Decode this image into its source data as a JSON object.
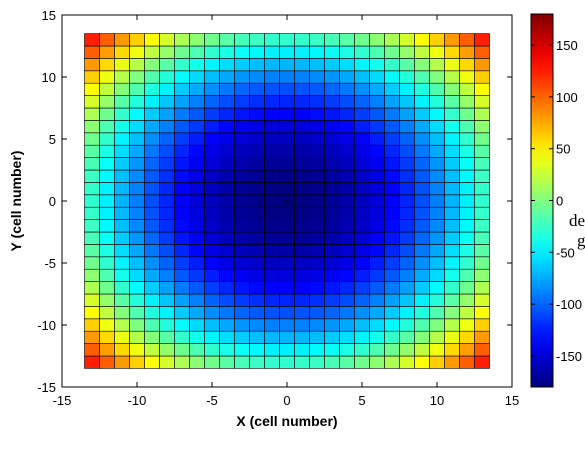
{
  "chart_data": {
    "type": "heatmap",
    "title": "",
    "xlabel": "X (cell number)",
    "ylabel": "Y (cell number)",
    "xlim": [
      -15,
      15
    ],
    "ylim": [
      -15,
      15
    ],
    "xticks": [
      -15,
      -10,
      -5,
      0,
      5,
      10,
      15
    ],
    "yticks": [
      -15,
      -10,
      -5,
      0,
      5,
      10,
      15
    ],
    "x_cells": [
      -13,
      13
    ],
    "y_cells": [
      -13,
      13
    ],
    "center_marker": {
      "x": 0,
      "y": 0,
      "symbol": "*",
      "color": "#ffffff"
    },
    "value_model": "phase in degrees, wrapped to [-180, 180]: value = wrap(-180 + 360*r^2/400), r = sqrt(x^2 + y^2)",
    "phase_coefficient": 360,
    "phase_offset": -180,
    "r_squared_period": 400,
    "colormap": "jet",
    "colorbar": {
      "clim": [
        -180,
        180
      ],
      "ticks": [
        -150,
        -100,
        -50,
        0,
        50,
        100,
        150
      ],
      "tick_labels": [
        "-150",
        "-100",
        "-50",
        "0",
        "50",
        "100",
        "150"
      ],
      "label_line1": "de",
      "label_line2": "g"
    },
    "grid": false,
    "cell_edge_color": "#000000"
  }
}
